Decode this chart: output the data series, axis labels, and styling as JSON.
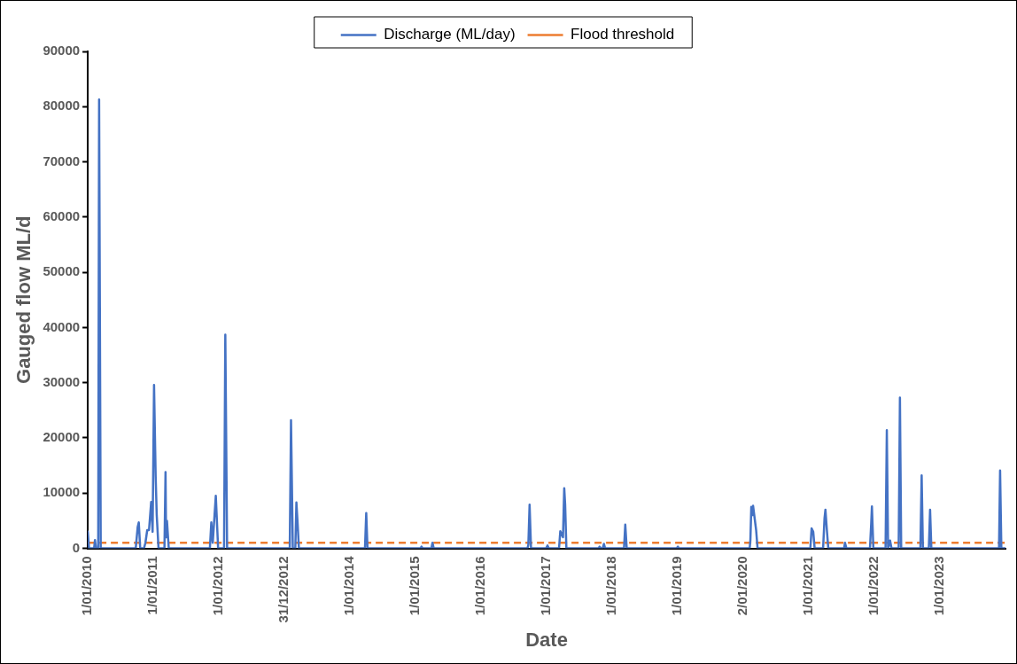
{
  "chart_data": {
    "type": "line",
    "xlabel": "Date",
    "ylabel": "Gauged flow ML/d",
    "xlim": [
      "2010-01-01",
      "2023-12-31"
    ],
    "xticks": [
      {
        "value": "2010-01-01",
        "label": "1/01/2010"
      },
      {
        "value": "2011-01-01",
        "label": "1/01/2011"
      },
      {
        "value": "2012-01-01",
        "label": "1/01/2012"
      },
      {
        "value": "2012-12-31",
        "label": "31/12/2012"
      },
      {
        "value": "2014-01-01",
        "label": "1/01/2014"
      },
      {
        "value": "2015-01-01",
        "label": "1/01/2015"
      },
      {
        "value": "2016-01-01",
        "label": "1/01/2016"
      },
      {
        "value": "2017-01-01",
        "label": "1/01/2017"
      },
      {
        "value": "2018-01-01",
        "label": "1/01/2018"
      },
      {
        "value": "2019-01-01",
        "label": "1/01/2019"
      },
      {
        "value": "2020-01-02",
        "label": "2/01/2020"
      },
      {
        "value": "2021-01-01",
        "label": "1/01/2021"
      },
      {
        "value": "2022-01-01",
        "label": "1/01/2022"
      },
      {
        "value": "2023-01-01",
        "label": "1/01/2023"
      }
    ],
    "ylim": [
      0,
      90000
    ],
    "yticks": [
      0,
      10000,
      20000,
      30000,
      40000,
      50000,
      60000,
      70000,
      80000,
      90000
    ],
    "legend": "top",
    "series": [
      {
        "name": "Discharge (ML/day)",
        "color": "#4472c4",
        "line_style": "solid",
        "x": [
          "2010-01-01",
          "2010-01-08",
          "2010-02-05",
          "2010-02-10",
          "2010-02-16",
          "2010-02-28",
          "2010-03-05",
          "2010-03-14",
          "2010-09-25",
          "2010-10-06",
          "2010-10-12",
          "2010-10-20",
          "2010-11-10",
          "2010-11-18",
          "2010-11-28",
          "2010-12-08",
          "2010-12-20",
          "2010-12-28",
          "2011-01-05",
          "2011-01-14",
          "2011-01-20",
          "2011-01-30",
          "2011-03-04",
          "2011-03-10",
          "2011-03-13",
          "2011-03-18",
          "2011-03-28",
          "2011-11-12",
          "2011-11-20",
          "2011-11-28",
          "2011-12-15",
          "2011-12-28",
          "2012-01-30",
          "2012-02-06",
          "2012-02-16",
          "2013-01-30",
          "2013-02-06",
          "2013-02-16",
          "2013-03-02",
          "2013-03-08",
          "2013-03-14",
          "2013-03-22",
          "2014-03-25",
          "2014-04-01",
          "2014-04-08",
          "2015-01-28",
          "2015-02-03",
          "2015-02-10",
          "2015-03-30",
          "2015-04-05",
          "2015-04-12",
          "2016-09-15",
          "2016-09-20",
          "2016-09-27",
          "2016-10-05",
          "2016-12-28",
          "2017-01-05",
          "2017-01-12",
          "2017-03-10",
          "2017-03-17",
          "2017-04-01",
          "2017-04-08",
          "2017-04-13",
          "2017-04-20",
          "2017-10-15",
          "2017-10-22",
          "2017-10-29",
          "2017-11-08",
          "2017-11-15",
          "2017-11-22",
          "2018-03-07",
          "2018-03-14",
          "2018-03-22",
          "2018-12-25",
          "2019-01-01",
          "2019-01-08",
          "2020-02-05",
          "2020-02-09",
          "2020-02-14",
          "2020-02-19",
          "2020-02-24",
          "2020-03-12",
          "2020-03-20",
          "2021-01-08",
          "2021-01-15",
          "2021-01-24",
          "2021-02-01",
          "2021-03-20",
          "2021-03-28",
          "2021-04-02",
          "2021-04-10",
          "2021-04-18",
          "2021-07-15",
          "2021-07-20",
          "2021-07-28",
          "2021-12-06",
          "2021-12-13",
          "2021-12-17",
          "2021-12-25",
          "2022-03-03",
          "2022-03-10",
          "2022-03-17",
          "2022-03-28",
          "2022-04-05",
          "2022-05-15",
          "2022-05-22",
          "2022-05-29",
          "2022-09-13",
          "2022-09-20",
          "2022-09-27",
          "2022-10-30",
          "2022-11-06",
          "2022-11-13",
          "2023-11-25",
          "2023-12-01",
          "2023-12-08",
          "2023-12-31"
        ],
        "values": [
          3000,
          0,
          0,
          1500,
          0,
          0,
          81300,
          0,
          0,
          3900,
          4700,
          0,
          0,
          1000,
          3300,
          3300,
          8400,
          3000,
          29600,
          13000,
          6000,
          0,
          0,
          13800,
          2000,
          5000,
          0,
          0,
          4700,
          1000,
          9500,
          0,
          0,
          38700,
          0,
          0,
          23200,
          0,
          0,
          8300,
          5000,
          0,
          0,
          6400,
          0,
          0,
          300,
          0,
          0,
          1000,
          0,
          0,
          600,
          7900,
          0,
          0,
          500,
          0,
          0,
          3100,
          2000,
          10900,
          8000,
          0,
          0,
          300,
          0,
          0,
          800,
          0,
          0,
          4300,
          0,
          0,
          300,
          0,
          0,
          1500,
          7500,
          6000,
          7700,
          3300,
          0,
          0,
          3600,
          3000,
          0,
          0,
          5500,
          7000,
          3300,
          0,
          0,
          1000,
          0,
          0,
          4500,
          7600,
          0,
          0,
          21400,
          0,
          1400,
          0,
          0,
          27300,
          0,
          0,
          13200,
          0,
          0,
          7000,
          0,
          0,
          14100,
          0,
          0
        ]
      },
      {
        "name": "Flood threshold",
        "color": "#ed7d31",
        "line_style": "dashed",
        "x": [
          "2010-01-01",
          "2023-12-31"
        ],
        "values": [
          1000,
          1000
        ]
      }
    ]
  }
}
